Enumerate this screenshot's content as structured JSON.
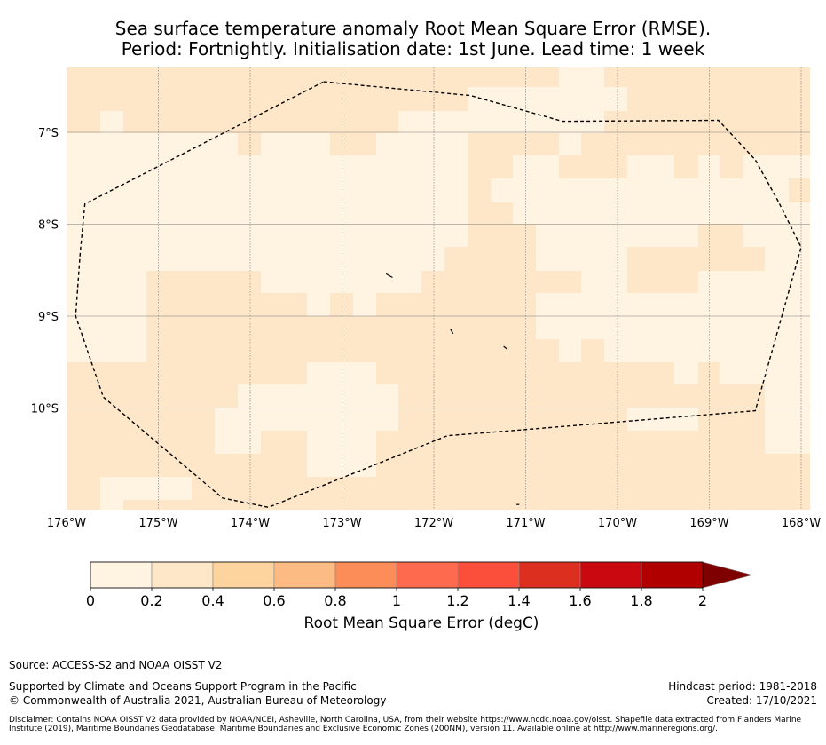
{
  "title": {
    "line1": "Sea surface temperature anomaly Root Mean Square Error (RMSE).",
    "line2": "Period: Fortnightly. Initialisation date: 1st June. Lead time: 1 week"
  },
  "map": {
    "lon_range": [
      -176,
      -167.9
    ],
    "lat_range": [
      -11.1,
      -6.3
    ],
    "x_ticks": [
      {
        "value": -176,
        "label": "176°W"
      },
      {
        "value": -175,
        "label": "175°W"
      },
      {
        "value": -174,
        "label": "174°W"
      },
      {
        "value": -173,
        "label": "173°W"
      },
      {
        "value": -172,
        "label": "172°W"
      },
      {
        "value": -171,
        "label": "171°W"
      },
      {
        "value": -170,
        "label": "170°W"
      },
      {
        "value": -169,
        "label": "169°W"
      },
      {
        "value": -168,
        "label": "168°W"
      }
    ],
    "y_ticks": [
      {
        "value": -7,
        "label": "7°S"
      },
      {
        "value": -8,
        "label": "8°S"
      },
      {
        "value": -9,
        "label": "9°S"
      },
      {
        "value": -10,
        "label": "10°S"
      }
    ],
    "eez_boundary": [
      [
        -173.2,
        -6.45
      ],
      [
        -171.6,
        -6.6
      ],
      [
        -170.6,
        -6.88
      ],
      [
        -168.9,
        -6.87
      ],
      [
        -168.5,
        -7.3
      ],
      [
        -168.25,
        -7.75
      ],
      [
        -168.0,
        -8.25
      ],
      [
        -168.5,
        -10.03
      ],
      [
        -171.2,
        -10.25
      ],
      [
        -171.85,
        -10.3
      ],
      [
        -173.8,
        -11.08
      ],
      [
        -174.3,
        -10.98
      ],
      [
        -175.6,
        -9.88
      ],
      [
        -175.9,
        -9.0
      ],
      [
        -175.85,
        -8.3
      ],
      [
        -175.8,
        -7.78
      ],
      [
        -173.2,
        -6.45
      ]
    ],
    "islands": [
      [
        [
          -172.52,
          -8.54
        ],
        [
          -172.45,
          -8.58
        ]
      ],
      [
        [
          -171.82,
          -9.14
        ],
        [
          -171.79,
          -9.19
        ]
      ],
      [
        [
          -171.24,
          -9.33
        ],
        [
          -171.2,
          -9.36
        ]
      ],
      [
        [
          -171.1,
          -11.05
        ],
        [
          -171.07,
          -11.05
        ]
      ]
    ]
  },
  "colorbar": {
    "boundaries": [
      0,
      0.2,
      0.4,
      0.6,
      0.8,
      1,
      1.2,
      1.4,
      1.6,
      1.8,
      2
    ],
    "labels": [
      "0",
      "0.2",
      "0.4",
      "0.6",
      "0.8",
      "1",
      "1.2",
      "1.4",
      "1.6",
      "1.8",
      "2"
    ],
    "colors": [
      "#fff3e2",
      "#fee6c9",
      "#fdd49e",
      "#fdbb84",
      "#fc8d59",
      "#fd6a4e",
      "#fb4f3c",
      "#dc2f1f",
      "#c9090f",
      "#b00000"
    ],
    "extend_color": "#7f0000",
    "title": "Root Mean Square Error (degC)"
  },
  "footer": {
    "source": "Source: ACCESS-S2 and NOAA OISST V2",
    "supported": "Supported by Climate and Oceans Support Program in the Pacific",
    "copyright": "© Commonwealth of Australia 2021, Australian Bureau of Meteorology",
    "hindcast": "Hindcast period: 1981-2018",
    "created": "Created: 17/10/2021",
    "disclaimer": "Disclaimer: Contains NOAA OISST V2 data provided by NOAA/NCEI, Asheville, North Carolina, USA, from their website https://www.ncdc.noaa.gov/oisst. Shapefile data extracted from Flanders Marine Institute (2019), Maritime Boundaries Geodatabase: Maritime Boundaries and Exclusive Economic Zones (200NM), version 11. Available online at http://www.marineregions.org/."
  }
}
